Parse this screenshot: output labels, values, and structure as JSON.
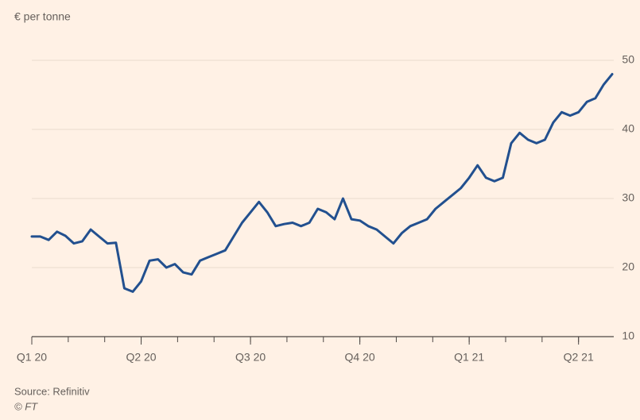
{
  "chart_data": {
    "type": "line",
    "subtitle": "€ per tonne",
    "source": "Source: Refinitiv",
    "credit": "© FT",
    "categories": [
      "Q1 20",
      null,
      null,
      null,
      null,
      null,
      null,
      null,
      null,
      null,
      null,
      null,
      null,
      "Q2 20",
      null,
      null,
      null,
      null,
      null,
      null,
      null,
      null,
      null,
      null,
      null,
      null,
      "Q3 20",
      null,
      null,
      null,
      null,
      null,
      null,
      null,
      null,
      null,
      null,
      null,
      null,
      "Q4 20",
      null,
      null,
      null,
      null,
      null,
      null,
      null,
      null,
      null,
      null,
      null,
      null,
      "Q1 21",
      null,
      null,
      null,
      null,
      null,
      null,
      null,
      null,
      null,
      null,
      null,
      null,
      "Q2 21",
      null,
      null,
      null,
      null
    ],
    "series": [
      {
        "name": null,
        "color": "#22508f",
        "values": [
          24.5,
          24.5,
          24,
          25.2,
          24.6,
          23.5,
          23.8,
          25.5,
          24.5,
          23.5,
          23.6,
          17,
          16.5,
          18,
          21,
          21.2,
          20,
          20.5,
          19.3,
          19,
          21,
          21.5,
          22,
          22.5,
          24.5,
          26.5,
          28,
          29.5,
          28,
          26,
          26.3,
          26.5,
          26,
          26.5,
          28.5,
          28,
          27,
          30,
          27,
          26.8,
          26,
          25.5,
          24.5,
          23.5,
          25,
          26,
          26.5,
          27,
          28.5,
          29.5,
          30.5,
          31.5,
          33,
          34.8,
          33,
          32.5,
          33,
          38,
          39.5,
          38.5,
          38,
          38.5,
          41,
          42.5,
          42,
          42.5,
          44,
          44.5,
          46.5,
          48
        ]
      }
    ],
    "ylim": [
      10,
      50
    ],
    "yticks": [
      10,
      20,
      30,
      40,
      50
    ],
    "grid": true
  }
}
